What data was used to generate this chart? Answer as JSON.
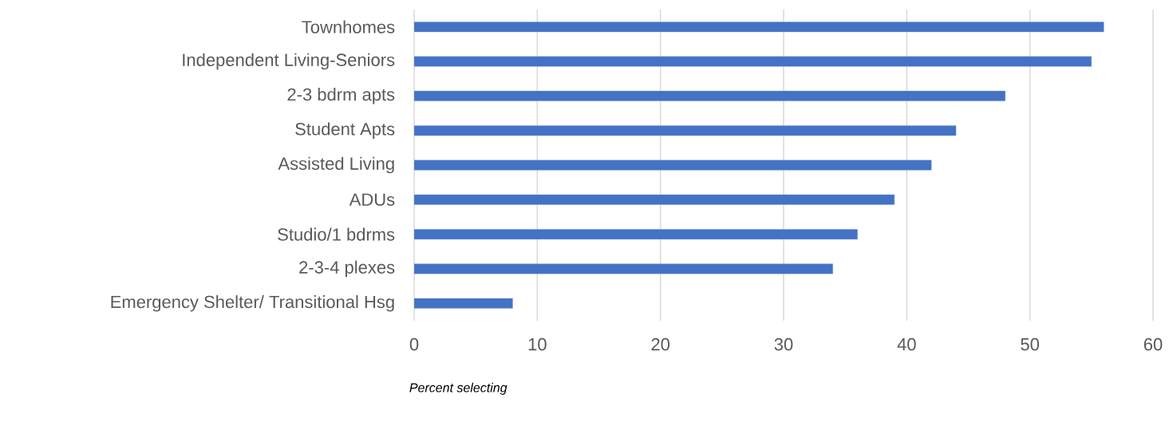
{
  "chart_data": {
    "type": "bar",
    "orientation": "horizontal",
    "xlabel": "Percent selecting",
    "categories": [
      "Townhomes",
      "Independent Living-Seniors",
      "2-3 bdrm apts",
      "Student Apts",
      "Assisted Living",
      "ADUs",
      "Studio/1 bdrms",
      "2-3-4 plexes",
      "Emergency Shelter/ Transitional Hsg"
    ],
    "values": [
      56,
      55,
      48,
      44,
      42,
      39,
      36,
      34,
      8
    ],
    "color": "#4472c4",
    "xlim": [
      0,
      60
    ],
    "xticks": [
      0,
      10,
      20,
      30,
      40,
      50,
      60
    ],
    "grid": "x"
  }
}
